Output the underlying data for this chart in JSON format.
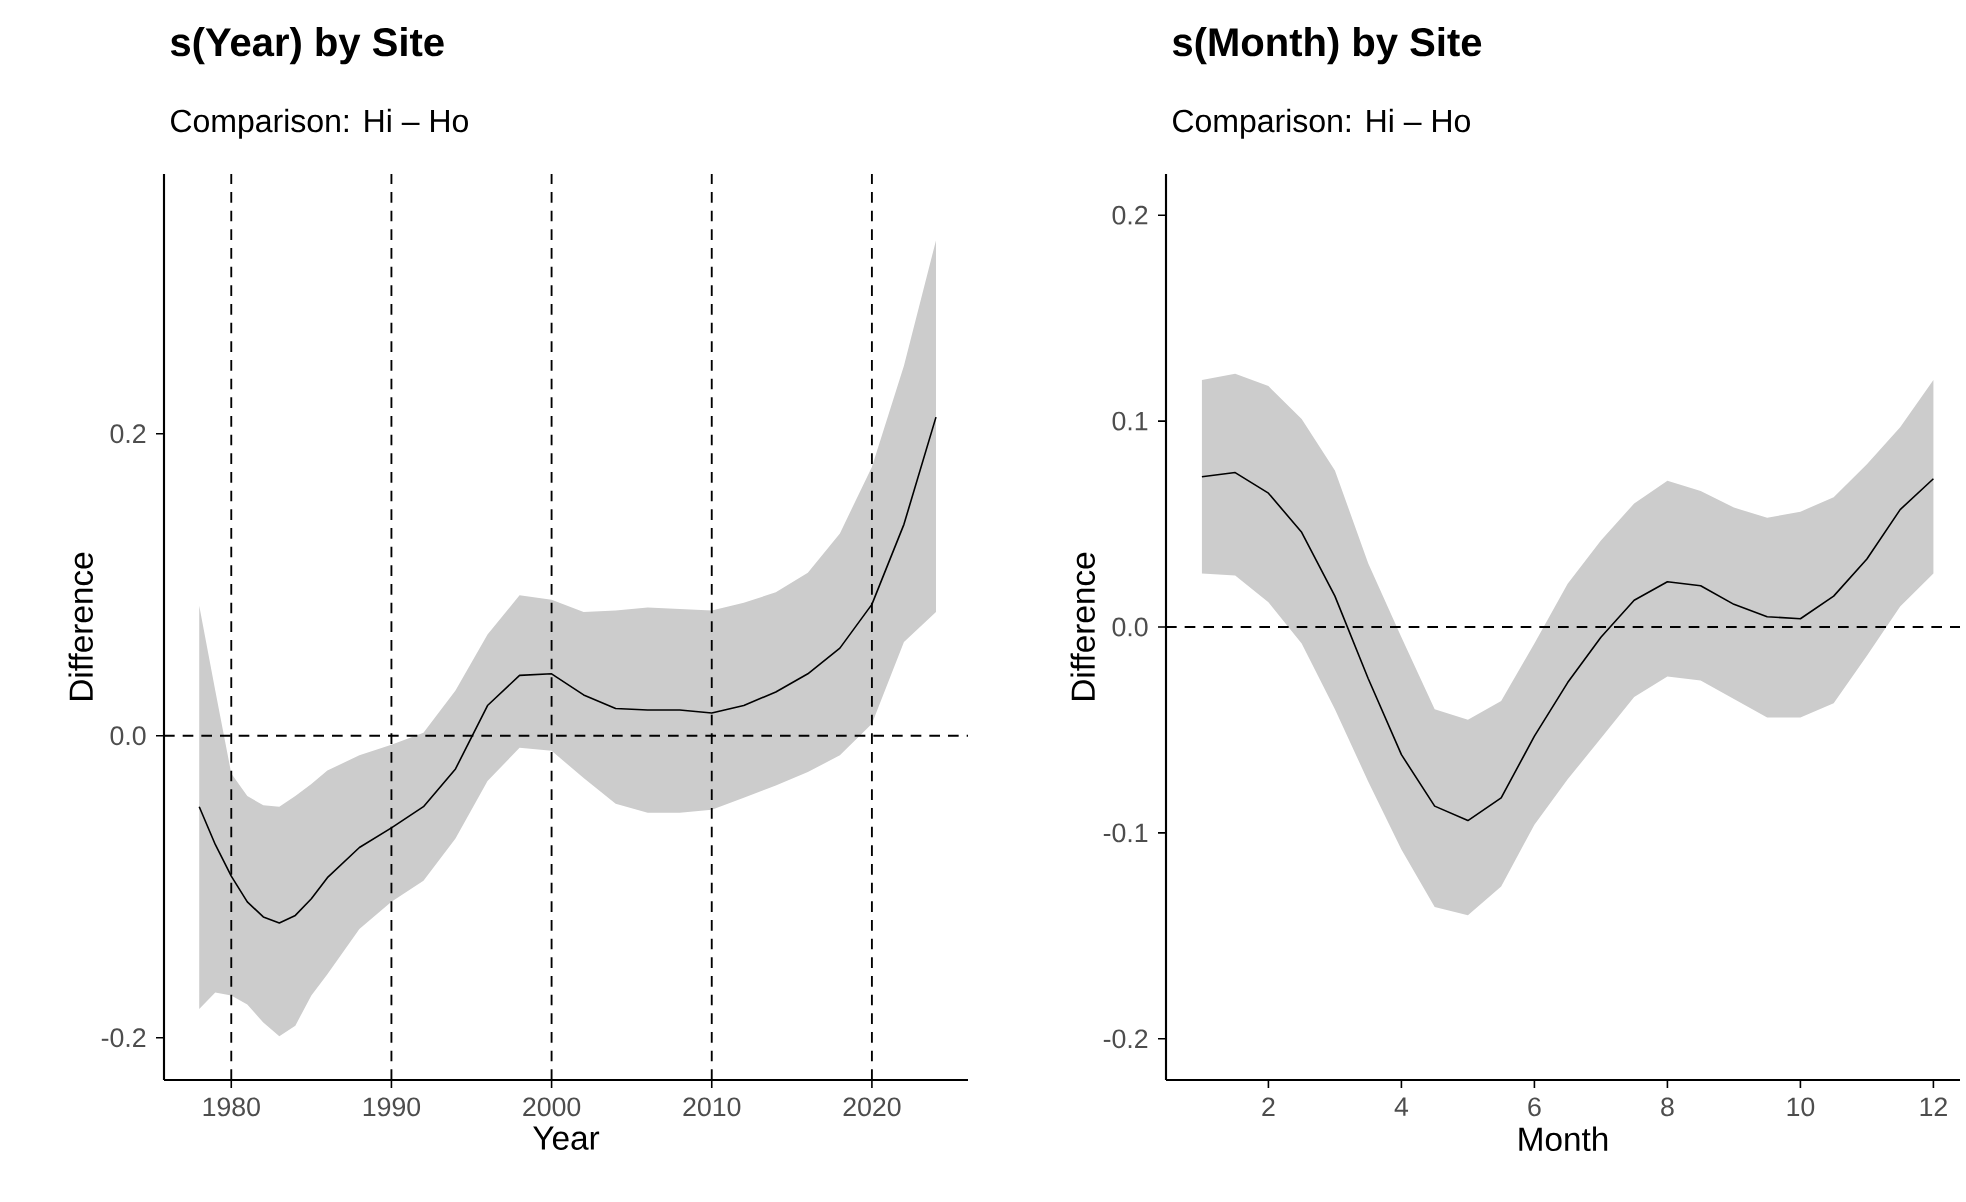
{
  "chart_data": [
    {
      "type": "line",
      "title": "s(Year) by Site",
      "subtitle": "Comparison: Hi – Ho",
      "xlabel": "Year",
      "ylabel": "Difference",
      "xlim": [
        1975.8,
        2026.0
      ],
      "ylim": [
        -0.228,
        0.372
      ],
      "xticks": [
        1980,
        1990,
        2000,
        2010,
        2020
      ],
      "yticks": [
        -0.2,
        {
          "value": 0,
          "label": "0.0"
        },
        0.2
      ],
      "series": [
        {
          "color": "#000000",
          "x": [
            1978,
            1979,
            1980,
            1981,
            1982,
            1983,
            1984,
            1985,
            1986,
            1988,
            1990,
            1992,
            1994,
            1996,
            1998,
            2000,
            2002,
            2004,
            2006,
            2008,
            2010,
            2012,
            2014,
            2016,
            2018,
            2020,
            2022,
            2024
          ],
          "values": [
            -0.047,
            -0.072,
            -0.093,
            -0.11,
            -0.12,
            -0.124,
            -0.119,
            -0.108,
            -0.094,
            -0.074,
            -0.061,
            -0.047,
            -0.022,
            0.02,
            0.04,
            0.041,
            0.027,
            0.018,
            0.017,
            0.017,
            0.015,
            0.02,
            0.029,
            0.041,
            0.058,
            0.087,
            0.14,
            0.211
          ],
          "upper": [
            0.086,
            0.03,
            -0.025,
            -0.04,
            -0.046,
            -0.047,
            -0.04,
            -0.032,
            -0.023,
            -0.013,
            -0.006,
            0.002,
            0.03,
            0.067,
            0.093,
            0.09,
            0.082,
            0.083,
            0.085,
            0.084,
            0.083,
            0.088,
            0.095,
            0.108,
            0.134,
            0.178,
            0.245,
            0.328
          ],
          "lower": [
            -0.181,
            -0.17,
            -0.172,
            -0.178,
            -0.19,
            -0.199,
            -0.192,
            -0.172,
            -0.158,
            -0.128,
            -0.11,
            -0.096,
            -0.068,
            -0.03,
            -0.008,
            -0.01,
            -0.028,
            -0.045,
            -0.051,
            -0.051,
            -0.049,
            -0.041,
            -0.033,
            -0.024,
            -0.013,
            0.008,
            0.062,
            0.082
          ]
        }
      ],
      "ref_lines": [
        {
          "axis": "y",
          "value": 0,
          "color": "#000000",
          "line_style": "dashed"
        },
        {
          "axis": "x",
          "value": 1980,
          "color": "#000000",
          "line_style": "dashed"
        },
        {
          "axis": "x",
          "value": 1990,
          "color": "#000000",
          "line_style": "dashed"
        },
        {
          "axis": "x",
          "value": 2000,
          "color": "#000000",
          "line_style": "dashed"
        },
        {
          "axis": "x",
          "value": 2010,
          "color": "#000000",
          "line_style": "dashed"
        },
        {
          "axis": "x",
          "value": 2020,
          "color": "#000000",
          "line_style": "dashed"
        }
      ]
    },
    {
      "type": "line",
      "title": "s(Month) by Site",
      "subtitle": "Comparison: Hi – Ho",
      "xlabel": "Month",
      "ylabel": "Difference",
      "xlim": [
        0.46,
        12.4
      ],
      "ylim": [
        -0.22,
        0.22
      ],
      "xticks": [
        2,
        4,
        6,
        8,
        10,
        12
      ],
      "yticks": [
        -0.2,
        -0.1,
        {
          "value": 0,
          "label": "0.0"
        },
        0.1,
        0.2
      ],
      "series": [
        {
          "color": "#000000",
          "x": [
            1,
            1.5,
            2,
            2.5,
            3,
            3.5,
            4,
            4.5,
            5,
            5.5,
            6,
            6.5,
            7,
            7.5,
            8,
            8.5,
            9,
            9.5,
            10,
            10.5,
            11,
            11.5,
            12
          ],
          "values": [
            0.073,
            0.075,
            0.065,
            0.046,
            0.015,
            -0.025,
            -0.062,
            -0.087,
            -0.094,
            -0.083,
            -0.053,
            -0.027,
            -0.005,
            0.013,
            0.022,
            0.02,
            0.011,
            0.005,
            0.004,
            0.015,
            0.033,
            0.057,
            0.072
          ],
          "upper": [
            0.12,
            0.123,
            0.117,
            0.101,
            0.076,
            0.031,
            -0.005,
            -0.04,
            -0.045,
            -0.036,
            -0.008,
            0.021,
            0.042,
            0.06,
            0.071,
            0.066,
            0.058,
            0.053,
            0.056,
            0.063,
            0.079,
            0.097,
            0.12
          ],
          "lower": [
            0.026,
            0.025,
            0.012,
            -0.008,
            -0.04,
            -0.075,
            -0.108,
            -0.136,
            -0.14,
            -0.126,
            -0.096,
            -0.074,
            -0.054,
            -0.034,
            -0.024,
            -0.026,
            -0.035,
            -0.044,
            -0.044,
            -0.037,
            -0.014,
            0.01,
            0.026
          ]
        }
      ],
      "ref_lines": [
        {
          "axis": "y",
          "value": 0,
          "color": "#000000",
          "line_style": "dashed"
        }
      ]
    }
  ]
}
